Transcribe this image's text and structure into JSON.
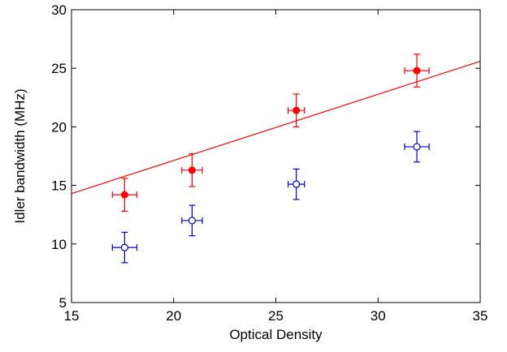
{
  "chart_data": {
    "type": "scatter",
    "xlabel": "Optical Density",
    "ylabel": "Idler bandwidth (MHz)",
    "xlim": [
      15,
      35
    ],
    "ylim": [
      5,
      30
    ],
    "xticks": [
      15,
      20,
      25,
      30,
      35
    ],
    "yticks": [
      5,
      10,
      15,
      20,
      25,
      30
    ],
    "grid": false,
    "colors": {
      "filled": "#ff0000",
      "open": "#0000cc"
    },
    "series": [
      {
        "marker": "filled-circle",
        "color": "#ff0000",
        "points": [
          {
            "x": 17.6,
            "y": 14.2,
            "xerr": 0.6,
            "yerr": 1.4
          },
          {
            "x": 20.9,
            "y": 16.3,
            "xerr": 0.5,
            "yerr": 1.4
          },
          {
            "x": 26.0,
            "y": 21.4,
            "xerr": 0.4,
            "yerr": 1.4
          },
          {
            "x": 31.9,
            "y": 24.8,
            "xerr": 0.6,
            "yerr": 1.4
          }
        ]
      },
      {
        "marker": "open-circle",
        "color": "#0000cc",
        "points": [
          {
            "x": 17.6,
            "y": 9.7,
            "xerr": 0.6,
            "yerr": 1.3
          },
          {
            "x": 20.9,
            "y": 12.0,
            "xerr": 0.5,
            "yerr": 1.3
          },
          {
            "x": 26.0,
            "y": 15.1,
            "xerr": 0.4,
            "yerr": 1.3
          },
          {
            "x": 31.9,
            "y": 18.3,
            "xerr": 0.6,
            "yerr": 1.3
          }
        ]
      }
    ],
    "fit_line": {
      "color": "#ff0000",
      "x": [
        15,
        35
      ],
      "y": [
        14.3,
        25.6
      ]
    }
  }
}
